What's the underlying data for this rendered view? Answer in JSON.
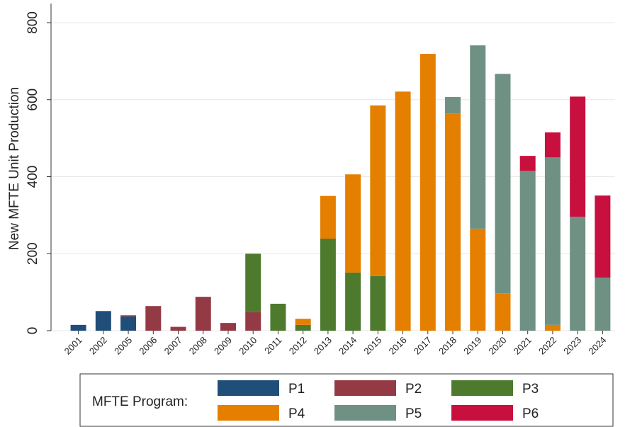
{
  "chart_data": {
    "type": "stacked_bar",
    "y_label": "New MFTE Unit Production",
    "legend_title": "MFTE Program:",
    "categories": [
      "2001",
      "2002",
      "2005",
      "2006",
      "2007",
      "2008",
      "2009",
      "2010",
      "2011",
      "2012",
      "2013",
      "2014",
      "2015",
      "2016",
      "2017",
      "2018",
      "2019",
      "2020",
      "2021",
      "2022",
      "2023",
      "2024"
    ],
    "series": [
      {
        "name": "P1",
        "color": "#1f4e79",
        "values": [
          15,
          51,
          37,
          0,
          0,
          0,
          0,
          0,
          0,
          0,
          0,
          0,
          0,
          0,
          0,
          0,
          0,
          0,
          0,
          0,
          0,
          0
        ]
      },
      {
        "name": "P2",
        "color": "#943a45",
        "values": [
          0,
          0,
          3,
          64,
          10,
          88,
          20,
          48,
          0,
          0,
          0,
          0,
          0,
          0,
          0,
          0,
          0,
          0,
          0,
          0,
          0,
          0
        ]
      },
      {
        "name": "P3",
        "color": "#4e7a2e",
        "values": [
          0,
          0,
          0,
          0,
          0,
          0,
          0,
          152,
          70,
          15,
          239,
          151,
          142,
          0,
          0,
          0,
          0,
          0,
          0,
          0,
          0,
          0
        ]
      },
      {
        "name": "P4",
        "color": "#e57f00",
        "values": [
          0,
          0,
          0,
          0,
          0,
          0,
          0,
          0,
          0,
          16,
          111,
          255,
          443,
          621,
          719,
          564,
          265,
          97,
          0,
          15,
          0,
          0
        ]
      },
      {
        "name": "P5",
        "color": "#6f9183",
        "values": [
          0,
          0,
          0,
          0,
          0,
          0,
          0,
          0,
          0,
          0,
          0,
          0,
          0,
          0,
          0,
          43,
          476,
          570,
          415,
          435,
          296,
          138
        ]
      },
      {
        "name": "P6",
        "color": "#c8103e",
        "values": [
          0,
          0,
          0,
          0,
          0,
          0,
          0,
          0,
          0,
          0,
          0,
          0,
          0,
          0,
          0,
          0,
          0,
          0,
          39,
          65,
          312,
          213
        ]
      }
    ],
    "ylim": [
      0,
      800
    ],
    "yticks": [
      0,
      200,
      400,
      600,
      800
    ],
    "grid": true
  }
}
